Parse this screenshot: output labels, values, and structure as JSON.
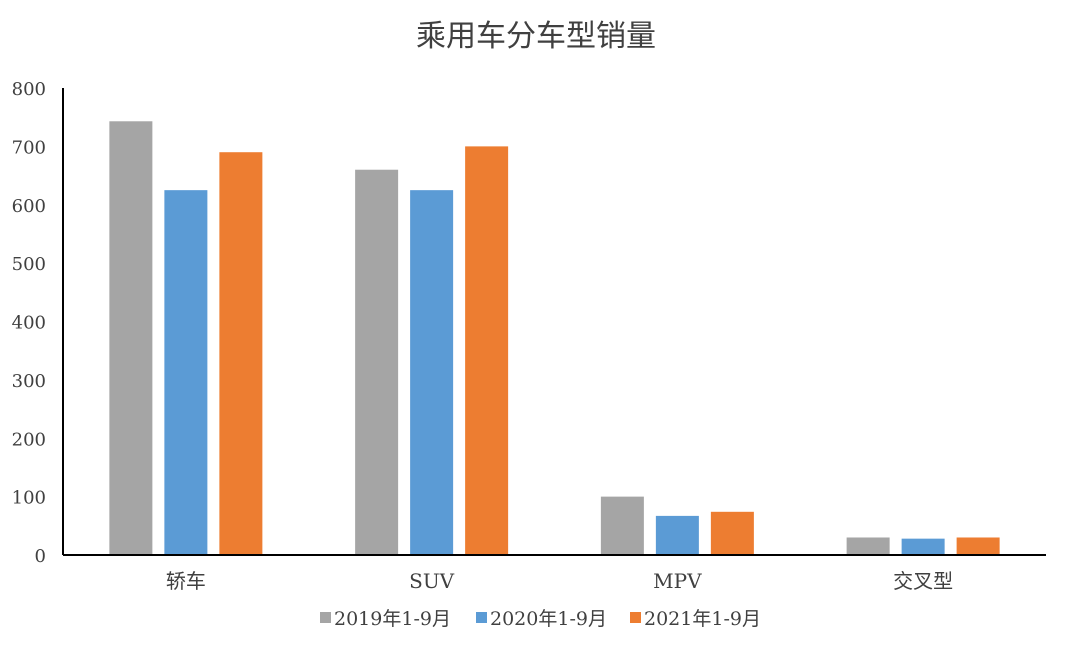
{
  "chart_data": {
    "type": "bar",
    "title": "乘用车分车型销量",
    "xlabel": "",
    "ylabel": "",
    "categories": [
      "轿车",
      "SUV",
      "MPV",
      "交叉型"
    ],
    "series": [
      {
        "name": "2019年1-9月",
        "color": "#A5A5A5",
        "values": [
          743,
          660,
          100,
          30
        ]
      },
      {
        "name": "2020年1-9月",
        "color": "#5B9BD5",
        "values": [
          625,
          625,
          67,
          28
        ]
      },
      {
        "name": "2021年1-9月",
        "color": "#ED7D31",
        "values": [
          690,
          700,
          74,
          30
        ]
      }
    ],
    "ylim": [
      0,
      800
    ],
    "yticks": [
      "0",
      "100",
      "200",
      "300",
      "400",
      "500",
      "600",
      "700",
      "800"
    ],
    "grid": false,
    "legend": "bottom"
  }
}
